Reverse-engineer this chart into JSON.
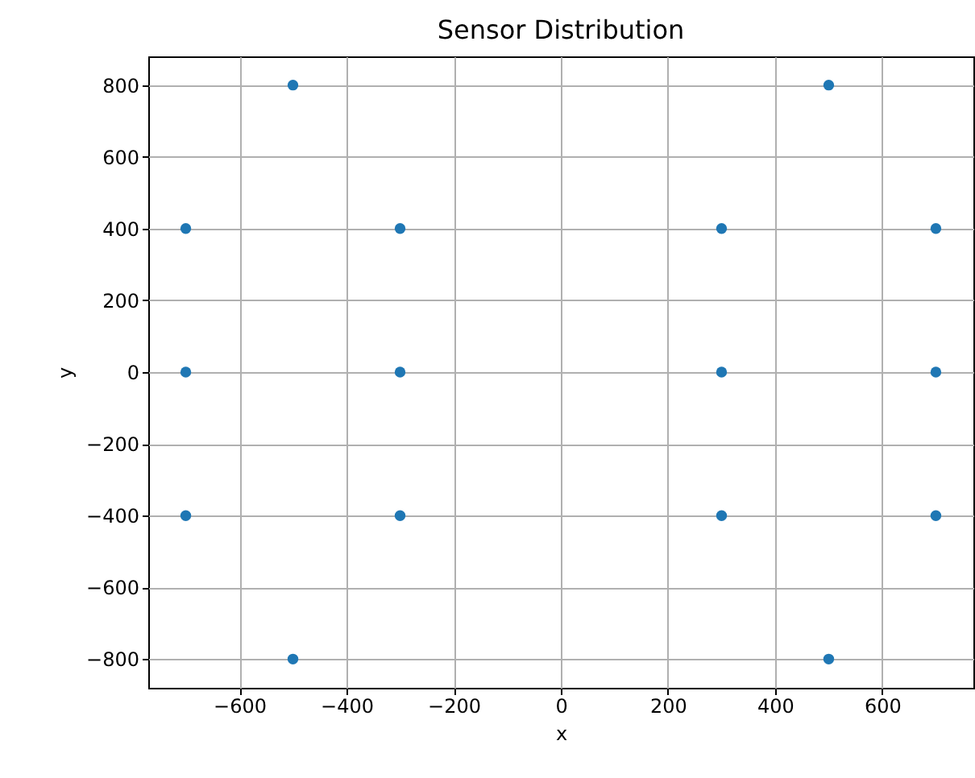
{
  "chart_data": {
    "type": "scatter",
    "title": "Sensor Distribution",
    "xlabel": "x",
    "ylabel": "y",
    "x": [
      -700,
      -700,
      -700,
      -500,
      -500,
      -300,
      -300,
      -300,
      300,
      300,
      300,
      500,
      500,
      700,
      700,
      700
    ],
    "series": [
      {
        "color": "#1f77b4",
        "values": [
          400,
          0,
          -400,
          800,
          -800,
          400,
          0,
          -400,
          400,
          0,
          -400,
          800,
          -800,
          400,
          0,
          -400
        ]
      }
    ],
    "xlim": [
      -770,
      770
    ],
    "ylim": [
      -880,
      880
    ],
    "xticks": [
      -600,
      -400,
      -200,
      0,
      200,
      400,
      600
    ],
    "yticks": [
      -800,
      -600,
      -400,
      -200,
      0,
      200,
      400,
      600,
      800
    ],
    "grid": true,
    "marker": "circle"
  }
}
